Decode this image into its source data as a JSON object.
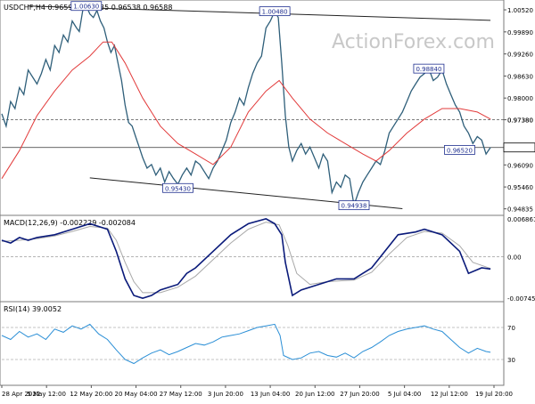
{
  "header": {
    "main": "USDCHF,H4  0.96594 0.96635 0.96538 0.96588",
    "macd": "MACD(12,26,9) -0.002229 -0.002084",
    "rsi": "RSI(14) 39.0052"
  },
  "watermark": "ActionForex.com",
  "colors": {
    "price": "#2f5f7a",
    "ma": "#e23b3b",
    "macd": "#0a1a7a",
    "signal": "#a9a9a9",
    "rsi": "#2b8fd6",
    "levelLine": "#333333",
    "labelBox": "#1f2f8f"
  },
  "chart_data": [
    {
      "type": "line",
      "title": "USDCHF,H4",
      "price_axis": [
        "1.00520",
        "0.99890",
        "0.99260",
        "0.98630",
        "0.98000",
        "0.97380",
        "0.96588",
        "0.96090",
        "0.95460",
        "0.94835"
      ],
      "current_price": "0.96588",
      "ylim": [
        0.947,
        1.0075
      ],
      "x_ticks": [
        "28 Apr 2022",
        "5 May 12:00",
        "12 May 20:00",
        "20 May 04:00",
        "27 May 12:00",
        "3 Jun 20:00",
        "13 Jun 04:00",
        "20 Jun 12:00",
        "27 Jun 20:00",
        "5 Jul 04:00",
        "12 Jul 12:00",
        "19 Jul 20:00"
      ],
      "price_series": [
        [
          0,
          0.9755
        ],
        [
          5,
          0.972
        ],
        [
          10,
          0.979
        ],
        [
          15,
          0.977
        ],
        [
          20,
          0.983
        ],
        [
          25,
          0.981
        ],
        [
          30,
          0.988
        ],
        [
          35,
          0.986
        ],
        [
          40,
          0.984
        ],
        [
          45,
          0.987
        ],
        [
          50,
          0.991
        ],
        [
          55,
          0.988
        ],
        [
          60,
          0.995
        ],
        [
          65,
          0.993
        ],
        [
          70,
          0.998
        ],
        [
          75,
          0.996
        ],
        [
          80,
          1.002
        ],
        [
          85,
          1.0
        ],
        [
          88,
          0.999
        ],
        [
          92,
          1.005
        ],
        [
          96,
          1.0063
        ],
        [
          100,
          1.004
        ],
        [
          104,
          1.003
        ],
        [
          108,
          1.005
        ],
        [
          112,
          1.002
        ],
        [
          116,
          1.0
        ],
        [
          120,
          0.996
        ],
        [
          124,
          0.993
        ],
        [
          128,
          0.995
        ],
        [
          132,
          0.99
        ],
        [
          136,
          0.985
        ],
        [
          140,
          0.978
        ],
        [
          144,
          0.973
        ],
        [
          148,
          0.972
        ],
        [
          152,
          0.969
        ],
        [
          156,
          0.966
        ],
        [
          160,
          0.963
        ],
        [
          165,
          0.96
        ],
        [
          170,
          0.961
        ],
        [
          175,
          0.958
        ],
        [
          180,
          0.96
        ],
        [
          185,
          0.956
        ],
        [
          190,
          0.959
        ],
        [
          195,
          0.957
        ],
        [
          200,
          0.9554
        ],
        [
          205,
          0.958
        ],
        [
          210,
          0.96
        ],
        [
          215,
          0.958
        ],
        [
          220,
          0.962
        ],
        [
          225,
          0.961
        ],
        [
          230,
          0.959
        ],
        [
          235,
          0.957
        ],
        [
          240,
          0.96
        ],
        [
          245,
          0.962
        ],
        [
          250,
          0.965
        ],
        [
          255,
          0.968
        ],
        [
          260,
          0.973
        ],
        [
          265,
          0.976
        ],
        [
          270,
          0.98
        ],
        [
          275,
          0.978
        ],
        [
          280,
          0.983
        ],
        [
          285,
          0.987
        ],
        [
          290,
          0.99
        ],
        [
          295,
          0.992
        ],
        [
          300,
          1.0
        ],
        [
          305,
          1.002
        ],
        [
          310,
          1.0048
        ],
        [
          314,
          1.003
        ],
        [
          318,
          0.99
        ],
        [
          322,
          0.975
        ],
        [
          326,
          0.966
        ],
        [
          330,
          0.962
        ],
        [
          335,
          0.965
        ],
        [
          340,
          0.967
        ],
        [
          345,
          0.964
        ],
        [
          350,
          0.966
        ],
        [
          355,
          0.963
        ],
        [
          360,
          0.96
        ],
        [
          365,
          0.964
        ],
        [
          370,
          0.962
        ],
        [
          375,
          0.953
        ],
        [
          380,
          0.956
        ],
        [
          385,
          0.9545
        ],
        [
          390,
          0.958
        ],
        [
          395,
          0.957
        ],
        [
          400,
          0.9494
        ],
        [
          405,
          0.953
        ],
        [
          410,
          0.956
        ],
        [
          415,
          0.958
        ],
        [
          420,
          0.96
        ],
        [
          425,
          0.962
        ],
        [
          430,
          0.961
        ],
        [
          435,
          0.965
        ],
        [
          440,
          0.97
        ],
        [
          445,
          0.972
        ],
        [
          450,
          0.974
        ],
        [
          455,
          0.976
        ],
        [
          460,
          0.979
        ],
        [
          465,
          0.982
        ],
        [
          470,
          0.984
        ],
        [
          475,
          0.986
        ],
        [
          480,
          0.987
        ],
        [
          485,
          0.9884
        ],
        [
          490,
          0.985
        ],
        [
          495,
          0.986
        ],
        [
          500,
          0.988
        ],
        [
          505,
          0.984
        ],
        [
          510,
          0.981
        ],
        [
          515,
          0.978
        ],
        [
          520,
          0.976
        ],
        [
          525,
          0.972
        ],
        [
          530,
          0.97
        ],
        [
          535,
          0.967
        ],
        [
          540,
          0.969
        ],
        [
          545,
          0.968
        ],
        [
          550,
          0.964
        ],
        [
          555,
          0.9659
        ]
      ],
      "ma_series": [
        [
          0,
          0.957
        ],
        [
          20,
          0.965
        ],
        [
          40,
          0.975
        ],
        [
          60,
          0.982
        ],
        [
          80,
          0.988
        ],
        [
          100,
          0.992
        ],
        [
          115,
          0.996
        ],
        [
          125,
          0.996
        ],
        [
          140,
          0.99
        ],
        [
          160,
          0.98
        ],
        [
          180,
          0.972
        ],
        [
          200,
          0.967
        ],
        [
          220,
          0.964
        ],
        [
          240,
          0.961
        ],
        [
          260,
          0.966
        ],
        [
          280,
          0.976
        ],
        [
          300,
          0.982
        ],
        [
          315,
          0.985
        ],
        [
          330,
          0.98
        ],
        [
          350,
          0.974
        ],
        [
          370,
          0.97
        ],
        [
          390,
          0.967
        ],
        [
          410,
          0.964
        ],
        [
          425,
          0.962
        ],
        [
          440,
          0.965
        ],
        [
          460,
          0.97
        ],
        [
          480,
          0.974
        ],
        [
          500,
          0.977
        ],
        [
          520,
          0.977
        ],
        [
          540,
          0.976
        ],
        [
          555,
          0.974
        ]
      ],
      "level_lines": [
        {
          "value": 0.9738,
          "style": "dashed",
          "label": "0.97380"
        },
        {
          "value": 0.96588,
          "style": "solid"
        }
      ],
      "annotations": [
        {
          "label": "1.00630",
          "x": 96
        },
        {
          "label": "1.00480",
          "x": 310
        },
        {
          "label": "0.95430",
          "x": 200
        },
        {
          "label": "0.94938",
          "x": 400
        },
        {
          "label": "0.98840",
          "x": 485
        },
        {
          "label": "0.96520",
          "x": 520
        }
      ],
      "trendlines": [
        {
          "points": [
            [
              30,
              1.0063
            ],
            [
              555,
              1.0022
            ]
          ]
        },
        {
          "points": [
            [
              100,
              0.9572
            ],
            [
              455,
              0.9484
            ]
          ]
        }
      ]
    },
    {
      "type": "line",
      "title": "MACD(12,26,9)",
      "axis_labels": [
        "0.006861",
        "0.00",
        "-0.007454"
      ],
      "ylim": [
        -0.0078,
        0.0072
      ],
      "macd_series": [
        [
          0,
          0.003
        ],
        [
          10,
          0.0025
        ],
        [
          20,
          0.0035
        ],
        [
          30,
          0.003
        ],
        [
          40,
          0.0035
        ],
        [
          60,
          0.004
        ],
        [
          80,
          0.005
        ],
        [
          100,
          0.006
        ],
        [
          120,
          0.005
        ],
        [
          130,
          0.001
        ],
        [
          140,
          -0.004
        ],
        [
          150,
          -0.007
        ],
        [
          160,
          -0.0075
        ],
        [
          170,
          -0.007
        ],
        [
          180,
          -0.006
        ],
        [
          200,
          -0.005
        ],
        [
          210,
          -0.003
        ],
        [
          220,
          -0.002
        ],
        [
          240,
          0.001
        ],
        [
          260,
          0.004
        ],
        [
          280,
          0.006
        ],
        [
          300,
          0.0069
        ],
        [
          310,
          0.006
        ],
        [
          318,
          0.004
        ],
        [
          322,
          -0.001
        ],
        [
          330,
          -0.007
        ],
        [
          340,
          -0.006
        ],
        [
          360,
          -0.005
        ],
        [
          380,
          -0.004
        ],
        [
          400,
          -0.004
        ],
        [
          410,
          -0.003
        ],
        [
          420,
          -0.002
        ],
        [
          440,
          0.002
        ],
        [
          450,
          0.004
        ],
        [
          470,
          0.0045
        ],
        [
          480,
          0.005
        ],
        [
          500,
          0.004
        ],
        [
          520,
          0.001
        ],
        [
          530,
          -0.003
        ],
        [
          545,
          -0.002
        ],
        [
          555,
          -0.0022
        ]
      ],
      "signal_series": [
        [
          0,
          0.0028
        ],
        [
          20,
          0.003
        ],
        [
          40,
          0.0033
        ],
        [
          60,
          0.0038
        ],
        [
          80,
          0.0046
        ],
        [
          100,
          0.0055
        ],
        [
          120,
          0.0052
        ],
        [
          130,
          0.003
        ],
        [
          140,
          -0.001
        ],
        [
          150,
          -0.0045
        ],
        [
          160,
          -0.0065
        ],
        [
          180,
          -0.0065
        ],
        [
          200,
          -0.0055
        ],
        [
          220,
          -0.0035
        ],
        [
          240,
          -0.0005
        ],
        [
          260,
          0.0025
        ],
        [
          280,
          0.005
        ],
        [
          300,
          0.0063
        ],
        [
          315,
          0.0058
        ],
        [
          325,
          0.002
        ],
        [
          335,
          -0.003
        ],
        [
          350,
          -0.005
        ],
        [
          370,
          -0.0045
        ],
        [
          400,
          -0.0042
        ],
        [
          420,
          -0.0028
        ],
        [
          440,
          0.0005
        ],
        [
          460,
          0.0035
        ],
        [
          480,
          0.0046
        ],
        [
          500,
          0.0043
        ],
        [
          520,
          0.002
        ],
        [
          535,
          -0.001
        ],
        [
          555,
          -0.0021
        ]
      ]
    },
    {
      "type": "line",
      "title": "RSI(14)",
      "axis_labels": [
        "70",
        "30"
      ],
      "levels": [
        70,
        30
      ],
      "ylim": [
        0,
        100
      ],
      "rsi_series": [
        [
          0,
          60
        ],
        [
          10,
          55
        ],
        [
          20,
          65
        ],
        [
          30,
          58
        ],
        [
          40,
          62
        ],
        [
          50,
          55
        ],
        [
          60,
          68
        ],
        [
          70,
          64
        ],
        [
          80,
          72
        ],
        [
          90,
          68
        ],
        [
          100,
          74
        ],
        [
          110,
          62
        ],
        [
          120,
          55
        ],
        [
          130,
          42
        ],
        [
          140,
          30
        ],
        [
          150,
          25
        ],
        [
          160,
          32
        ],
        [
          170,
          38
        ],
        [
          180,
          42
        ],
        [
          190,
          36
        ],
        [
          200,
          40
        ],
        [
          210,
          45
        ],
        [
          220,
          50
        ],
        [
          230,
          48
        ],
        [
          240,
          52
        ],
        [
          250,
          58
        ],
        [
          260,
          60
        ],
        [
          270,
          62
        ],
        [
          280,
          66
        ],
        [
          290,
          70
        ],
        [
          300,
          72
        ],
        [
          310,
          74
        ],
        [
          316,
          60
        ],
        [
          320,
          35
        ],
        [
          330,
          30
        ],
        [
          340,
          32
        ],
        [
          350,
          38
        ],
        [
          360,
          40
        ],
        [
          370,
          35
        ],
        [
          380,
          33
        ],
        [
          390,
          38
        ],
        [
          400,
          32
        ],
        [
          410,
          40
        ],
        [
          420,
          45
        ],
        [
          430,
          52
        ],
        [
          440,
          60
        ],
        [
          450,
          65
        ],
        [
          460,
          68
        ],
        [
          470,
          70
        ],
        [
          480,
          72
        ],
        [
          490,
          68
        ],
        [
          500,
          65
        ],
        [
          510,
          55
        ],
        [
          520,
          45
        ],
        [
          530,
          38
        ],
        [
          540,
          44
        ],
        [
          550,
          40
        ],
        [
          555,
          39
        ]
      ]
    }
  ]
}
